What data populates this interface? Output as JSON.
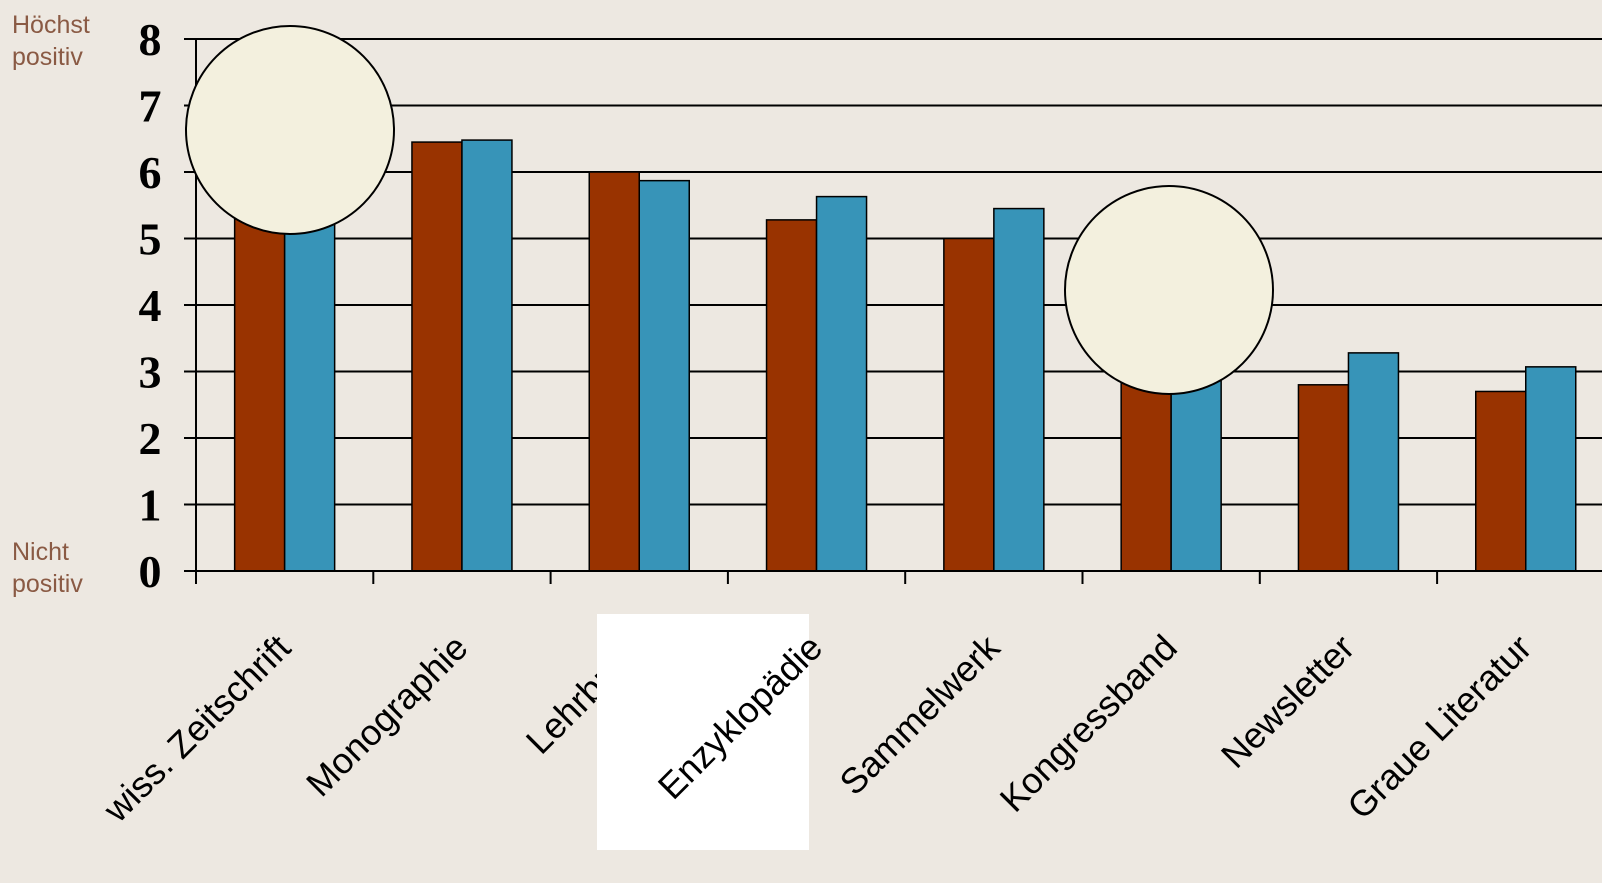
{
  "chart_data": {
    "type": "bar",
    "categories": [
      "wiss. Zeitschrift",
      "Monographie",
      "Lehrbuch",
      "Enzyklopädie",
      "Sammelwerk",
      "Kongressband",
      "Newsletter",
      "Graue Literatur"
    ],
    "series": [
      {
        "color": "#993300",
        "values": [
          5.6,
          6.45,
          6.0,
          5.28,
          5.0,
          3.0,
          2.8,
          2.7
        ]
      },
      {
        "color": "#3794b8",
        "values": [
          5.7,
          6.48,
          5.87,
          5.63,
          5.45,
          3.2,
          3.28,
          3.07
        ]
      }
    ],
    "ylim": [
      0,
      8
    ],
    "yticks": [
      0,
      1,
      2,
      3,
      4,
      5,
      6,
      7,
      8
    ],
    "grid": true,
    "y_top_label": [
      "Höchst",
      "positiv"
    ],
    "y_bottom_label": [
      "Nicht",
      "positiv"
    ],
    "xlabel": "",
    "ylabel": ""
  }
}
